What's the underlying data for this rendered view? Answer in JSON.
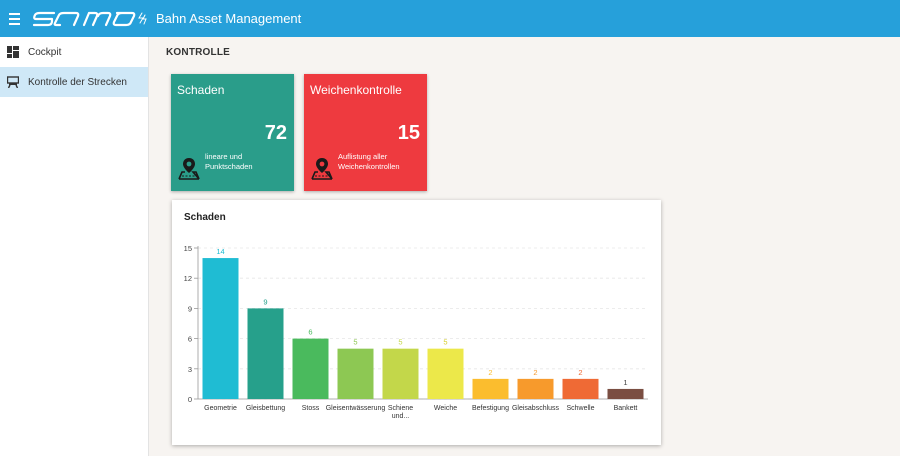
{
  "header": {
    "logo_text": "samo",
    "app_title": "Bahn Asset Management"
  },
  "sidebar": {
    "items": [
      {
        "label": "Cockpit",
        "icon": "dashboard-icon",
        "active": false
      },
      {
        "label": "Kontrolle der Strecken",
        "icon": "train-icon",
        "active": true
      }
    ]
  },
  "page": {
    "title": "KONTROLLE"
  },
  "cards": [
    {
      "title": "Schaden",
      "count": "72",
      "description": "lineare und Punktschaden",
      "color": "#2a9d8a",
      "icon": "map-pin-icon"
    },
    {
      "title": "Weichenkontrolle",
      "count": "15",
      "description": "Auflistung aller Weichenkontrollen",
      "color": "#ee3a3f",
      "icon": "map-pin-icon"
    }
  ],
  "chart_data": {
    "type": "bar",
    "title": "Schaden",
    "categories": [
      "Geometrie",
      "Gleisbettung",
      "Stoss",
      "Gleisentwässerung",
      "Schiene und...",
      "Weiche",
      "Befestigung",
      "Gleisabschluss",
      "Schwelle",
      "Bankett"
    ],
    "values": [
      14,
      9,
      6,
      5,
      5,
      5,
      2,
      2,
      2,
      1
    ],
    "colors": [
      "#1fbcd3",
      "#26a08b",
      "#4aba5d",
      "#8dc853",
      "#c3d74a",
      "#ece84a",
      "#fbbd2e",
      "#f79a2c",
      "#ef6a35",
      "#7a4e42"
    ],
    "label_colors": [
      "#1fbcd3",
      "#26a08b",
      "#4aba5d",
      "#8dc853",
      "#c3d74a",
      "#d6cf2e",
      "#fbbd2e",
      "#f79a2c",
      "#ef6a35",
      "#444444"
    ],
    "ylim": [
      0,
      15
    ],
    "yticks": [
      0,
      3,
      6,
      9,
      12,
      15
    ],
    "xlabel": "",
    "ylabel": "",
    "grid": true
  }
}
